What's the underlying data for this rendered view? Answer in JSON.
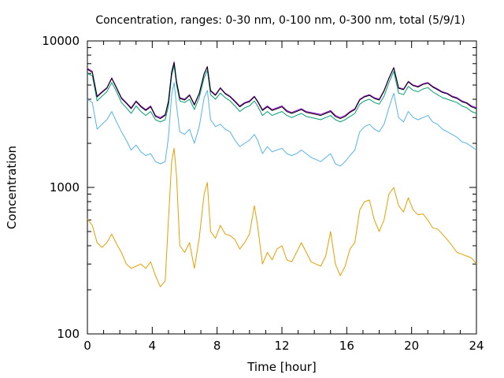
{
  "chart_data": {
    "type": "line",
    "title": "Concentration, ranges: 0-30 nm, 0-100 nm, 0-300 nm, total (5/9/1)",
    "xlabel": "Time [hour]",
    "ylabel": "Concentration",
    "xlim": [
      0,
      24
    ],
    "ylim": [
      100,
      10000
    ],
    "yscale": "log",
    "grid": false,
    "legend": "none",
    "x_ticks": [
      0,
      4,
      8,
      12,
      16,
      20,
      24
    ],
    "x_tick_labels": [
      "0",
      "4",
      "8",
      "12",
      "16",
      "20",
      "24"
    ],
    "y_ticks": [
      100,
      1000,
      10000
    ],
    "y_tick_labels": [
      "100",
      "1000",
      "10000"
    ],
    "series": [
      {
        "color": "#e69f00",
        "x": [
          0,
          0.3,
          0.6,
          0.9,
          1.2,
          1.5,
          1.8,
          2.1,
          2.4,
          2.7,
          3.0,
          3.3,
          3.6,
          3.9,
          4.2,
          4.5,
          4.8,
          5.0,
          5.2,
          5.35,
          5.5,
          5.7,
          6.0,
          6.3,
          6.6,
          6.9,
          7.2,
          7.4,
          7.6,
          7.9,
          8.2,
          8.5,
          8.8,
          9.1,
          9.4,
          9.7,
          10.0,
          10.3,
          10.5,
          10.8,
          11.1,
          11.4,
          11.7,
          12.0,
          12.3,
          12.6,
          12.9,
          13.2,
          13.5,
          13.8,
          14.1,
          14.4,
          14.7,
          15.0,
          15.3,
          15.6,
          15.9,
          16.2,
          16.5,
          16.8,
          17.1,
          17.4,
          17.7,
          18.0,
          18.3,
          18.6,
          18.9,
          19.2,
          19.5,
          19.8,
          20.1,
          20.4,
          20.7,
          21.0,
          21.3,
          21.6,
          21.9,
          22.2,
          22.5,
          22.8,
          23.1,
          23.4,
          23.7,
          24.0
        ],
        "y": [
          610,
          550,
          420,
          390,
          420,
          480,
          410,
          360,
          300,
          280,
          290,
          300,
          280,
          310,
          250,
          210,
          230,
          600,
          1500,
          1850,
          1200,
          400,
          360,
          420,
          280,
          450,
          900,
          1080,
          500,
          450,
          550,
          480,
          470,
          440,
          380,
          420,
          480,
          750,
          550,
          300,
          360,
          320,
          380,
          400,
          320,
          310,
          360,
          420,
          360,
          310,
          300,
          290,
          340,
          500,
          300,
          250,
          290,
          380,
          420,
          700,
          800,
          820,
          600,
          500,
          600,
          900,
          1000,
          750,
          680,
          850,
          700,
          650,
          660,
          600,
          530,
          520,
          480,
          440,
          400,
          360,
          350,
          340,
          330,
          300
        ]
      },
      {
        "color": "#56b4e9",
        "x": [
          0,
          0.3,
          0.6,
          0.9,
          1.2,
          1.5,
          1.8,
          2.1,
          2.4,
          2.7,
          3.0,
          3.3,
          3.6,
          3.9,
          4.2,
          4.5,
          4.8,
          5.0,
          5.2,
          5.35,
          5.5,
          5.7,
          6.0,
          6.3,
          6.6,
          6.9,
          7.2,
          7.4,
          7.6,
          7.9,
          8.2,
          8.5,
          8.8,
          9.1,
          9.4,
          9.7,
          10.0,
          10.3,
          10.5,
          10.8,
          11.1,
          11.4,
          11.7,
          12.0,
          12.3,
          12.6,
          12.9,
          13.2,
          13.5,
          13.8,
          14.1,
          14.4,
          14.7,
          15.0,
          15.3,
          15.6,
          15.9,
          16.2,
          16.5,
          16.8,
          17.1,
          17.4,
          17.7,
          18.0,
          18.3,
          18.6,
          18.9,
          19.2,
          19.5,
          19.8,
          20.1,
          20.4,
          20.7,
          21.0,
          21.3,
          21.6,
          21.9,
          22.2,
          22.5,
          22.8,
          23.1,
          23.4,
          23.7,
          24.0
        ],
        "y": [
          4000,
          3800,
          2500,
          2700,
          2900,
          3300,
          2800,
          2400,
          2100,
          1800,
          1950,
          1750,
          1650,
          1700,
          1500,
          1450,
          1500,
          2200,
          4300,
          5200,
          3600,
          2400,
          2300,
          2500,
          2000,
          2600,
          4100,
          4600,
          2900,
          2600,
          2700,
          2500,
          2400,
          2100,
          1900,
          2000,
          2100,
          2300,
          2100,
          1700,
          1900,
          1750,
          1800,
          1850,
          1700,
          1650,
          1700,
          1800,
          1700,
          1600,
          1550,
          1500,
          1600,
          1700,
          1450,
          1400,
          1500,
          1650,
          1800,
          2400,
          2600,
          2700,
          2500,
          2400,
          2700,
          3500,
          4400,
          3000,
          2800,
          3300,
          3000,
          2900,
          3000,
          3100,
          2800,
          2700,
          2500,
          2400,
          2300,
          2200,
          2050,
          2000,
          1900,
          1800
        ]
      },
      {
        "color": "#009e73",
        "x": [
          0,
          0.3,
          0.6,
          0.9,
          1.2,
          1.5,
          1.8,
          2.1,
          2.4,
          2.7,
          3.0,
          3.3,
          3.6,
          3.9,
          4.2,
          4.5,
          4.8,
          5.0,
          5.2,
          5.35,
          5.5,
          5.7,
          6.0,
          6.3,
          6.6,
          6.9,
          7.2,
          7.4,
          7.6,
          7.9,
          8.2,
          8.5,
          8.8,
          9.1,
          9.4,
          9.7,
          10.0,
          10.3,
          10.5,
          10.8,
          11.1,
          11.4,
          11.7,
          12.0,
          12.3,
          12.6,
          12.9,
          13.2,
          13.5,
          13.8,
          14.1,
          14.4,
          14.7,
          15.0,
          15.3,
          15.6,
          15.9,
          16.2,
          16.5,
          16.8,
          17.1,
          17.4,
          17.7,
          18.0,
          18.3,
          18.6,
          18.9,
          19.2,
          19.5,
          19.8,
          20.1,
          20.4,
          20.7,
          21.0,
          21.3,
          21.6,
          21.9,
          22.2,
          22.5,
          22.8,
          23.1,
          23.4,
          23.7,
          24.0
        ],
        "y": [
          6000,
          5800,
          3900,
          4200,
          4500,
          5200,
          4500,
          3800,
          3500,
          3200,
          3600,
          3300,
          3100,
          3300,
          2900,
          2800,
          2900,
          3600,
          5800,
          6800,
          5000,
          3900,
          3800,
          4000,
          3400,
          4100,
          5600,
          6300,
          4300,
          4000,
          4400,
          4100,
          3900,
          3600,
          3300,
          3500,
          3600,
          3900,
          3600,
          3100,
          3300,
          3100,
          3200,
          3300,
          3100,
          3000,
          3100,
          3200,
          3050,
          3000,
          2950,
          2900,
          3000,
          3100,
          2900,
          2800,
          2900,
          3050,
          3200,
          3700,
          3900,
          4000,
          3800,
          3700,
          4200,
          5200,
          6200,
          4400,
          4300,
          4900,
          4600,
          4500,
          4700,
          4800,
          4500,
          4300,
          4100,
          4000,
          3900,
          3800,
          3600,
          3500,
          3300,
          3200
        ]
      },
      {
        "color": "#9400d3",
        "x": [
          0,
          0.3,
          0.6,
          0.9,
          1.2,
          1.5,
          1.8,
          2.1,
          2.4,
          2.7,
          3.0,
          3.3,
          3.6,
          3.9,
          4.2,
          4.5,
          4.8,
          5.0,
          5.2,
          5.35,
          5.5,
          5.7,
          6.0,
          6.3,
          6.6,
          6.9,
          7.2,
          7.4,
          7.6,
          7.9,
          8.2,
          8.5,
          8.8,
          9.1,
          9.4,
          9.7,
          10.0,
          10.3,
          10.5,
          10.8,
          11.1,
          11.4,
          11.7,
          12.0,
          12.3,
          12.6,
          12.9,
          13.2,
          13.5,
          13.8,
          14.1,
          14.4,
          14.7,
          15.0,
          15.3,
          15.6,
          15.9,
          16.2,
          16.5,
          16.8,
          17.1,
          17.4,
          17.7,
          18.0,
          18.3,
          18.6,
          18.9,
          19.2,
          19.5,
          19.8,
          20.1,
          20.4,
          20.7,
          21.0,
          21.3,
          21.6,
          21.9,
          22.2,
          22.5,
          22.8,
          23.1,
          23.4,
          23.7,
          24.0
        ],
        "y": [
          6500,
          6200,
          4200,
          4500,
          4800,
          5600,
          4800,
          4100,
          3800,
          3500,
          3900,
          3600,
          3400,
          3600,
          3100,
          3000,
          3150,
          3900,
          6200,
          7200,
          5300,
          4100,
          4000,
          4300,
          3700,
          4400,
          6000,
          6700,
          4600,
          4300,
          4800,
          4400,
          4200,
          3900,
          3600,
          3800,
          3900,
          4200,
          3900,
          3400,
          3600,
          3400,
          3500,
          3600,
          3350,
          3250,
          3350,
          3450,
          3300,
          3250,
          3200,
          3150,
          3250,
          3350,
          3100,
          3000,
          3100,
          3300,
          3450,
          4000,
          4200,
          4300,
          4100,
          4000,
          4600,
          5600,
          6600,
          4800,
          4700,
          5300,
          5000,
          4900,
          5100,
          5200,
          4900,
          4700,
          4500,
          4400,
          4200,
          4100,
          3900,
          3800,
          3600,
          3500
        ]
      },
      {
        "color": "#000000",
        "x": [
          0,
          0.3,
          0.6,
          0.9,
          1.2,
          1.5,
          1.8,
          2.1,
          2.4,
          2.7,
          3.0,
          3.3,
          3.6,
          3.9,
          4.2,
          4.5,
          4.8,
          5.0,
          5.2,
          5.35,
          5.5,
          5.7,
          6.0,
          6.3,
          6.6,
          6.9,
          7.2,
          7.4,
          7.6,
          7.9,
          8.2,
          8.5,
          8.8,
          9.1,
          9.4,
          9.7,
          10.0,
          10.3,
          10.5,
          10.8,
          11.1,
          11.4,
          11.7,
          12.0,
          12.3,
          12.6,
          12.9,
          13.2,
          13.5,
          13.8,
          14.1,
          14.4,
          14.7,
          15.0,
          15.3,
          15.6,
          15.9,
          16.2,
          16.5,
          16.8,
          17.1,
          17.4,
          17.7,
          18.0,
          18.3,
          18.6,
          18.9,
          19.2,
          19.5,
          19.8,
          20.1,
          20.4,
          20.7,
          21.0,
          21.3,
          21.6,
          21.9,
          22.2,
          22.5,
          22.8,
          23.1,
          23.4,
          23.7,
          24.0
        ],
        "y": [
          6400,
          6100,
          4150,
          4450,
          4750,
          5550,
          4750,
          4050,
          3750,
          3450,
          3850,
          3550,
          3350,
          3550,
          3050,
          2950,
          3100,
          3850,
          6100,
          7100,
          5250,
          4050,
          3950,
          4250,
          3650,
          4350,
          5950,
          6650,
          4550,
          4250,
          4750,
          4350,
          4150,
          3850,
          3550,
          3750,
          3850,
          4150,
          3850,
          3350,
          3550,
          3350,
          3450,
          3550,
          3300,
          3200,
          3300,
          3400,
          3250,
          3200,
          3150,
          3100,
          3200,
          3300,
          3050,
          2950,
          3050,
          3250,
          3400,
          3950,
          4150,
          4250,
          4050,
          3950,
          4550,
          5550,
          6550,
          4750,
          4650,
          5250,
          4950,
          4850,
          5050,
          5150,
          4850,
          4650,
          4450,
          4350,
          4150,
          4050,
          3850,
          3750,
          3550,
          3450
        ]
      }
    ]
  }
}
